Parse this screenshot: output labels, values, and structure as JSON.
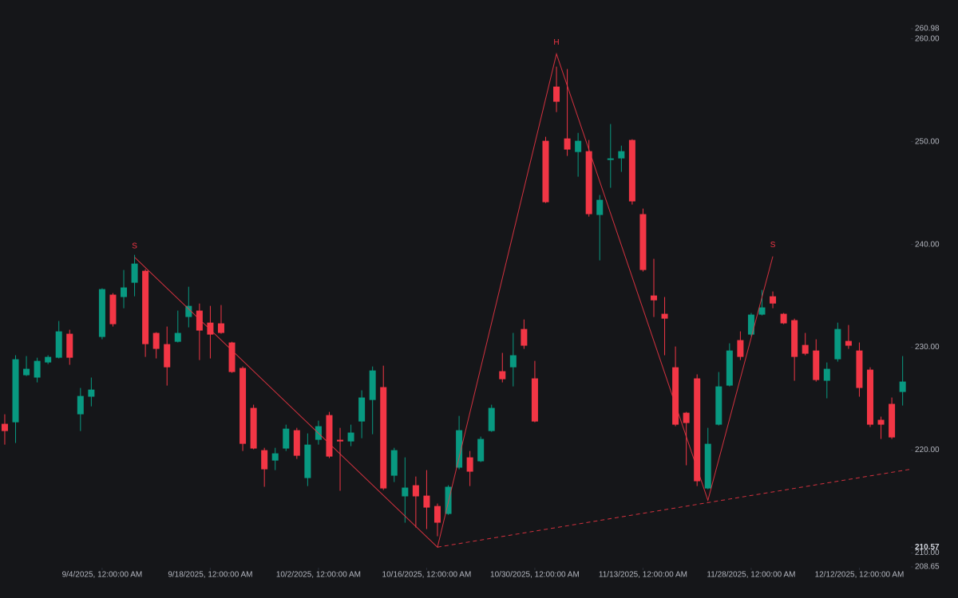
{
  "chart_data": {
    "type": "candlestick",
    "up_color": "#089981",
    "down_color": "#f23645",
    "open": [
      222.56,
      222.71,
      227.29,
      227.06,
      228.53,
      228.99,
      231.32,
      223.49,
      225.2,
      231.01,
      235.12,
      234.89,
      236.28,
      237.44,
      231.4,
      230.31,
      230.54,
      232.95,
      233.57,
      232.4,
      232.33,
      230.47,
      227.99,
      224.11,
      220.0,
      218.99,
      220.16,
      221.94,
      217.29,
      221.01,
      223.41,
      221.01,
      220.85,
      222.79,
      224.88,
      226.13,
      217.52,
      215.51,
      216.59,
      215.58,
      214.57,
      213.8,
      218.3,
      219.3,
      218.92,
      221.86,
      227.68,
      228.06,
      231.78,
      226.98,
      250.08,
      255.35,
      250.31,
      248.99,
      249.07,
      242.87,
      248.22,
      248.37,
      250.16,
      242.95,
      235.04,
      233.26,
      228.06,
      223.64,
      226.98,
      216.28,
      222.48,
      226.28,
      230.7,
      231.24,
      233.18,
      234.96,
      233.26,
      232.64,
      230.23,
      229.69,
      226.75,
      228.84,
      230.62,
      229.69,
      227.83,
      222.95,
      224.5,
      225.66
    ],
    "high": [
      223.49,
      229.23,
      229.15,
      228.99,
      229.23,
      232.56,
      231.71,
      226.05,
      227.06,
      235.74,
      235.27,
      237.52,
      238.99,
      237.6,
      231.47,
      232.02,
      233.57,
      235.89,
      234.26,
      234.03,
      234.11,
      230.54,
      228.14,
      224.42,
      220.23,
      220.23,
      222.48,
      222.17,
      221.63,
      222.87,
      223.72,
      222.17,
      222.48,
      225.82,
      228.14,
      228.22,
      220.23,
      219.3,
      217.44,
      218.06,
      214.81,
      216.59,
      223.33,
      219.92,
      221.32,
      224.42,
      229.46,
      231.4,
      232.71,
      228.68,
      250.47,
      257.29,
      257.06,
      250.85,
      250.16,
      244.81,
      251.71,
      249.61,
      250.23,
      243.49,
      238.61,
      234.89,
      230.08,
      223.72,
      227.37,
      222.17,
      227.6,
      230.39,
      231.55,
      233.34,
      235.58,
      235.43,
      233.34,
      232.79,
      231.4,
      230.78,
      228.53,
      232.4,
      232.17,
      230.47,
      228.06,
      223.26,
      225.12,
      229.15
    ],
    "low": [
      220.54,
      220.7,
      227.21,
      226.59,
      228.37,
      228.92,
      228.3,
      221.86,
      224.26,
      230.78,
      232.02,
      233.8,
      234.96,
      229.07,
      228.92,
      226.28,
      230.47,
      231.94,
      228.76,
      228.92,
      231.32,
      227.52,
      219.92,
      220.08,
      216.44,
      218.06,
      219.92,
      219.15,
      216.51,
      220.54,
      219.23,
      216.05,
      220.39,
      221.16,
      221.55,
      216.13,
      216.9,
      212.95,
      212.48,
      212.33,
      211.63,
      213.72,
      218.14,
      216.51,
      218.84,
      221.78,
      226.59,
      226.2,
      229.85,
      222.71,
      244.03,
      252.87,
      248.61,
      246.59,
      242.71,
      238.45,
      245.51,
      247.06,
      243.88,
      237.37,
      232.95,
      229.23,
      222.33,
      218.53,
      216.51,
      216.2,
      222.4,
      226.2,
      228.76,
      231.09,
      233.1,
      233.8,
      232.25,
      226.75,
      229.23,
      226.67,
      225.04,
      228.61,
      229.85,
      225.2,
      222.25,
      221.09,
      221.09,
      224.34
    ],
    "close": [
      221.86,
      228.84,
      227.91,
      228.68,
      229.07,
      231.55,
      228.99,
      225.27,
      225.89,
      235.66,
      232.25,
      235.82,
      238.14,
      230.31,
      229.85,
      228.06,
      231.4,
      234.03,
      231.63,
      231.24,
      231.4,
      227.6,
      220.62,
      220.16,
      218.14,
      219.69,
      222.09,
      219.46,
      220.54,
      222.33,
      219.38,
      220.85,
      221.71,
      225.12,
      227.75,
      216.28,
      220.0,
      216.36,
      215.51,
      214.42,
      212.95,
      216.44,
      221.94,
      217.91,
      221.09,
      224.11,
      226.9,
      229.23,
      230.16,
      222.79,
      244.11,
      253.88,
      249.23,
      250.08,
      242.95,
      244.34,
      248.37,
      249.07,
      244.19,
      237.52,
      234.57,
      232.79,
      222.48,
      222.64,
      216.98,
      220.62,
      226.2,
      229.69,
      229.07,
      233.18,
      233.88,
      234.26,
      232.33,
      229.07,
      229.38,
      226.82,
      227.91,
      231.78,
      230.16,
      226.05,
      222.48,
      222.48,
      221.24,
      226.67
    ],
    "xlim": [
      -0.44,
      83.69
    ],
    "xticks": [
      {
        "value": 9,
        "label": "9/4/2025, 12:00:00 AM"
      },
      {
        "value": 19,
        "label": "9/18/2025, 12:00:00 AM"
      },
      {
        "value": 29,
        "label": "10/2/2025, 12:00:00 AM"
      },
      {
        "value": 39,
        "label": "10/16/2025, 12:00:00 AM"
      },
      {
        "value": 49,
        "label": "10/30/2025, 12:00:00 AM"
      },
      {
        "value": 59,
        "label": "11/13/2025, 12:00:00 AM"
      },
      {
        "value": 69,
        "label": "11/28/2025, 12:00:00 AM"
      },
      {
        "value": 79,
        "label": "12/12/2025, 12:00:00 AM"
      }
    ],
    "ylim": [
      208.65,
      260.98
    ],
    "yticks": [
      260.98,
      {
        "value": 260,
        "label": "260.00"
      },
      {
        "value": 250,
        "label": "250.00"
      },
      {
        "value": 240,
        "label": "240.00"
      },
      {
        "value": 230,
        "label": "230.00"
      },
      {
        "value": 220,
        "label": "220.00"
      },
      {
        "value": 210,
        "label": "210.00"
      },
      210.57,
      208.65
    ],
    "pattern": {
      "color": "#f23645",
      "points": [
        {
          "x": 12,
          "y": 238.76,
          "label": "S"
        },
        {
          "x": 40,
          "y": 210.57
        },
        {
          "x": 51,
          "y": 258.53,
          "label": "H"
        },
        {
          "x": 65,
          "y": 215.12
        },
        {
          "x": 71,
          "y": 238.84,
          "label": "S"
        }
      ],
      "neckline": {
        "x": [
          40,
          83.69
        ],
        "y": [
          210.57,
          218.14
        ]
      }
    }
  }
}
